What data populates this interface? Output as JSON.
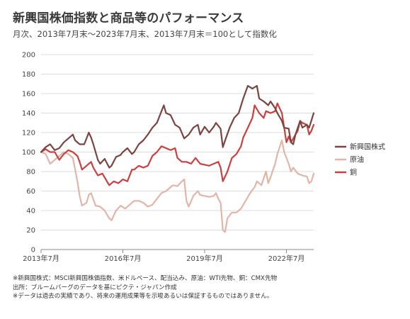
{
  "chart_data": {
    "type": "line",
    "title": "新興国株価指数と商品等のパフォーマンス",
    "subtitle": "月次、2013年7月末～2023年7月末、2013年7月末＝100として指数化",
    "x_range": [
      "2013-07",
      "2023-07"
    ],
    "x_ticks": [
      {
        "date": "2013-07",
        "label": "2013年7月"
      },
      {
        "date": "2016-07",
        "label": "2016年7月"
      },
      {
        "date": "2019-07",
        "label": "2019年7月"
      },
      {
        "date": "2022-07",
        "label": "2022年7月"
      }
    ],
    "ylim": [
      0,
      200
    ],
    "y_ticks": [
      0,
      20,
      40,
      60,
      80,
      100,
      120,
      140,
      160,
      180,
      200
    ],
    "grid": "horizontal",
    "legend_position": "right",
    "series": [
      {
        "name": "新興国株式",
        "color": "#7a4440",
        "points": [
          [
            "2013-07",
            100
          ],
          [
            "2013-09",
            105
          ],
          [
            "2013-11",
            108
          ],
          [
            "2014-01",
            102
          ],
          [
            "2014-03",
            104
          ],
          [
            "2014-05",
            110
          ],
          [
            "2014-07",
            114
          ],
          [
            "2014-09",
            118
          ],
          [
            "2014-10",
            112
          ],
          [
            "2014-12",
            108
          ],
          [
            "2015-02",
            108
          ],
          [
            "2015-04",
            120
          ],
          [
            "2015-05",
            115
          ],
          [
            "2015-06",
            108
          ],
          [
            "2015-08",
            92
          ],
          [
            "2015-09",
            88
          ],
          [
            "2015-11",
            93
          ],
          [
            "2016-01",
            84
          ],
          [
            "2016-02",
            86
          ],
          [
            "2016-04",
            95
          ],
          [
            "2016-06",
            97
          ],
          [
            "2016-07",
            100
          ],
          [
            "2016-09",
            104
          ],
          [
            "2016-11",
            98
          ],
          [
            "2016-12",
            100
          ],
          [
            "2017-02",
            108
          ],
          [
            "2017-04",
            112
          ],
          [
            "2017-06",
            118
          ],
          [
            "2017-08",
            125
          ],
          [
            "2017-10",
            130
          ],
          [
            "2018-01",
            148
          ],
          [
            "2018-02",
            140
          ],
          [
            "2018-04",
            138
          ],
          [
            "2018-06",
            128
          ],
          [
            "2018-08",
            125
          ],
          [
            "2018-10",
            114
          ],
          [
            "2018-12",
            118
          ],
          [
            "2019-02",
            125
          ],
          [
            "2019-04",
            128
          ],
          [
            "2019-05",
            118
          ],
          [
            "2019-07",
            126
          ],
          [
            "2019-09",
            120
          ],
          [
            "2019-11",
            126
          ],
          [
            "2019-12",
            130
          ],
          [
            "2020-02",
            124
          ],
          [
            "2020-03",
            105
          ],
          [
            "2020-04",
            112
          ],
          [
            "2020-06",
            125
          ],
          [
            "2020-08",
            135
          ],
          [
            "2020-10",
            140
          ],
          [
            "2020-12",
            155
          ],
          [
            "2021-02",
            168
          ],
          [
            "2021-04",
            165
          ],
          [
            "2021-06",
            168
          ],
          [
            "2021-07",
            155
          ],
          [
            "2021-09",
            152
          ],
          [
            "2021-11",
            148
          ],
          [
            "2021-12",
            152
          ],
          [
            "2022-02",
            145
          ],
          [
            "2022-03",
            140
          ],
          [
            "2022-05",
            132
          ],
          [
            "2022-06",
            125
          ],
          [
            "2022-08",
            124
          ],
          [
            "2022-09",
            110
          ],
          [
            "2022-10",
            108
          ],
          [
            "2022-11",
            118
          ],
          [
            "2023-01",
            132
          ],
          [
            "2023-02",
            125
          ],
          [
            "2023-04",
            128
          ],
          [
            "2023-05",
            125
          ],
          [
            "2023-07",
            140
          ]
        ]
      },
      {
        "name": "原油",
        "color": "#e1b5a8",
        "points": [
          [
            "2013-07",
            100
          ],
          [
            "2013-09",
            98
          ],
          [
            "2013-11",
            88
          ],
          [
            "2014-01",
            92
          ],
          [
            "2014-03",
            96
          ],
          [
            "2014-05",
            100
          ],
          [
            "2014-07",
            98
          ],
          [
            "2014-09",
            94
          ],
          [
            "2014-10",
            82
          ],
          [
            "2014-11",
            70
          ],
          [
            "2014-12",
            55
          ],
          [
            "2015-01",
            45
          ],
          [
            "2015-03",
            48
          ],
          [
            "2015-04",
            56
          ],
          [
            "2015-05",
            58
          ],
          [
            "2015-07",
            45
          ],
          [
            "2015-09",
            44
          ],
          [
            "2015-11",
            40
          ],
          [
            "2015-12",
            36
          ],
          [
            "2016-01",
            32
          ],
          [
            "2016-02",
            30
          ],
          [
            "2016-04",
            40
          ],
          [
            "2016-06",
            45
          ],
          [
            "2016-08",
            42
          ],
          [
            "2016-10",
            46
          ],
          [
            "2016-12",
            50
          ],
          [
            "2017-02",
            50
          ],
          [
            "2017-04",
            48
          ],
          [
            "2017-06",
            44
          ],
          [
            "2017-08",
            46
          ],
          [
            "2017-10",
            52
          ],
          [
            "2017-12",
            58
          ],
          [
            "2018-02",
            60
          ],
          [
            "2018-04",
            64
          ],
          [
            "2018-05",
            66
          ],
          [
            "2018-07",
            65
          ],
          [
            "2018-09",
            70
          ],
          [
            "2018-10",
            72
          ],
          [
            "2018-11",
            50
          ],
          [
            "2018-12",
            44
          ],
          [
            "2019-02",
            55
          ],
          [
            "2019-04",
            60
          ],
          [
            "2019-05",
            56
          ],
          [
            "2019-07",
            55
          ],
          [
            "2019-09",
            54
          ],
          [
            "2019-11",
            55
          ],
          [
            "2019-12",
            58
          ],
          [
            "2020-01",
            52
          ],
          [
            "2020-02",
            48
          ],
          [
            "2020-03",
            20
          ],
          [
            "2020-04",
            18
          ],
          [
            "2020-05",
            32
          ],
          [
            "2020-07",
            38
          ],
          [
            "2020-09",
            38
          ],
          [
            "2020-11",
            42
          ],
          [
            "2021-01",
            50
          ],
          [
            "2021-03",
            58
          ],
          [
            "2021-05",
            64
          ],
          [
            "2021-06",
            70
          ],
          [
            "2021-08",
            66
          ],
          [
            "2021-10",
            80
          ],
          [
            "2021-11",
            68
          ],
          [
            "2021-12",
            74
          ],
          [
            "2022-02",
            88
          ],
          [
            "2022-03",
            98
          ],
          [
            "2022-05",
            112
          ],
          [
            "2022-06",
            100
          ],
          [
            "2022-08",
            88
          ],
          [
            "2022-09",
            80
          ],
          [
            "2022-10",
            84
          ],
          [
            "2022-12",
            78
          ],
          [
            "2023-02",
            76
          ],
          [
            "2023-04",
            75
          ],
          [
            "2023-05",
            68
          ],
          [
            "2023-06",
            70
          ],
          [
            "2023-07",
            78
          ]
        ]
      },
      {
        "name": "銅",
        "color": "#c94040",
        "points": [
          [
            "2013-07",
            100
          ],
          [
            "2013-09",
            103
          ],
          [
            "2013-11",
            100
          ],
          [
            "2014-01",
            100
          ],
          [
            "2014-03",
            92
          ],
          [
            "2014-05",
            98
          ],
          [
            "2014-07",
            102
          ],
          [
            "2014-09",
            100
          ],
          [
            "2014-11",
            96
          ],
          [
            "2014-12",
            90
          ],
          [
            "2015-01",
            82
          ],
          [
            "2015-03",
            86
          ],
          [
            "2015-05",
            90
          ],
          [
            "2015-06",
            84
          ],
          [
            "2015-08",
            76
          ],
          [
            "2015-10",
            78
          ],
          [
            "2015-12",
            70
          ],
          [
            "2016-01",
            66
          ],
          [
            "2016-03",
            70
          ],
          [
            "2016-05",
            68
          ],
          [
            "2016-07",
            72
          ],
          [
            "2016-09",
            70
          ],
          [
            "2016-11",
            82
          ],
          [
            "2016-12",
            82
          ],
          [
            "2017-02",
            86
          ],
          [
            "2017-04",
            84
          ],
          [
            "2017-06",
            86
          ],
          [
            "2017-08",
            96
          ],
          [
            "2017-10",
            100
          ],
          [
            "2017-12",
            106
          ],
          [
            "2018-02",
            104
          ],
          [
            "2018-04",
            102
          ],
          [
            "2018-06",
            104
          ],
          [
            "2018-07",
            94
          ],
          [
            "2018-09",
            90
          ],
          [
            "2018-11",
            90
          ],
          [
            "2019-01",
            88
          ],
          [
            "2019-03",
            94
          ],
          [
            "2019-05",
            88
          ],
          [
            "2019-07",
            87
          ],
          [
            "2019-09",
            86
          ],
          [
            "2019-11",
            88
          ],
          [
            "2020-01",
            90
          ],
          [
            "2020-02",
            84
          ],
          [
            "2020-03",
            70
          ],
          [
            "2020-05",
            80
          ],
          [
            "2020-07",
            94
          ],
          [
            "2020-09",
            98
          ],
          [
            "2020-11",
            106
          ],
          [
            "2020-12",
            115
          ],
          [
            "2021-02",
            125
          ],
          [
            "2021-04",
            135
          ],
          [
            "2021-05",
            148
          ],
          [
            "2021-07",
            140
          ],
          [
            "2021-09",
            135
          ],
          [
            "2021-10",
            142
          ],
          [
            "2021-12",
            140
          ],
          [
            "2022-02",
            142
          ],
          [
            "2022-03",
            150
          ],
          [
            "2022-05",
            140
          ],
          [
            "2022-06",
            125
          ],
          [
            "2022-07",
            110
          ],
          [
            "2022-08",
            116
          ],
          [
            "2022-09",
            110
          ],
          [
            "2022-11",
            118
          ],
          [
            "2022-12",
            122
          ],
          [
            "2023-01",
            132
          ],
          [
            "2023-02",
            130
          ],
          [
            "2023-04",
            128
          ],
          [
            "2023-05",
            118
          ],
          [
            "2023-06",
            122
          ],
          [
            "2023-07",
            128
          ]
        ]
      }
    ]
  },
  "notes": [
    "※新興国株式：MSCI新興国株価指数、米ドルベース、配当込み、原油：WTI先物、銅：CMX先物",
    "出所：ブルームバーグのデータを基にピクテ・ジャパン作成",
    "※データは過去の実績であり、将来の運用成果等を示唆あるいは保証するものではありません。"
  ]
}
